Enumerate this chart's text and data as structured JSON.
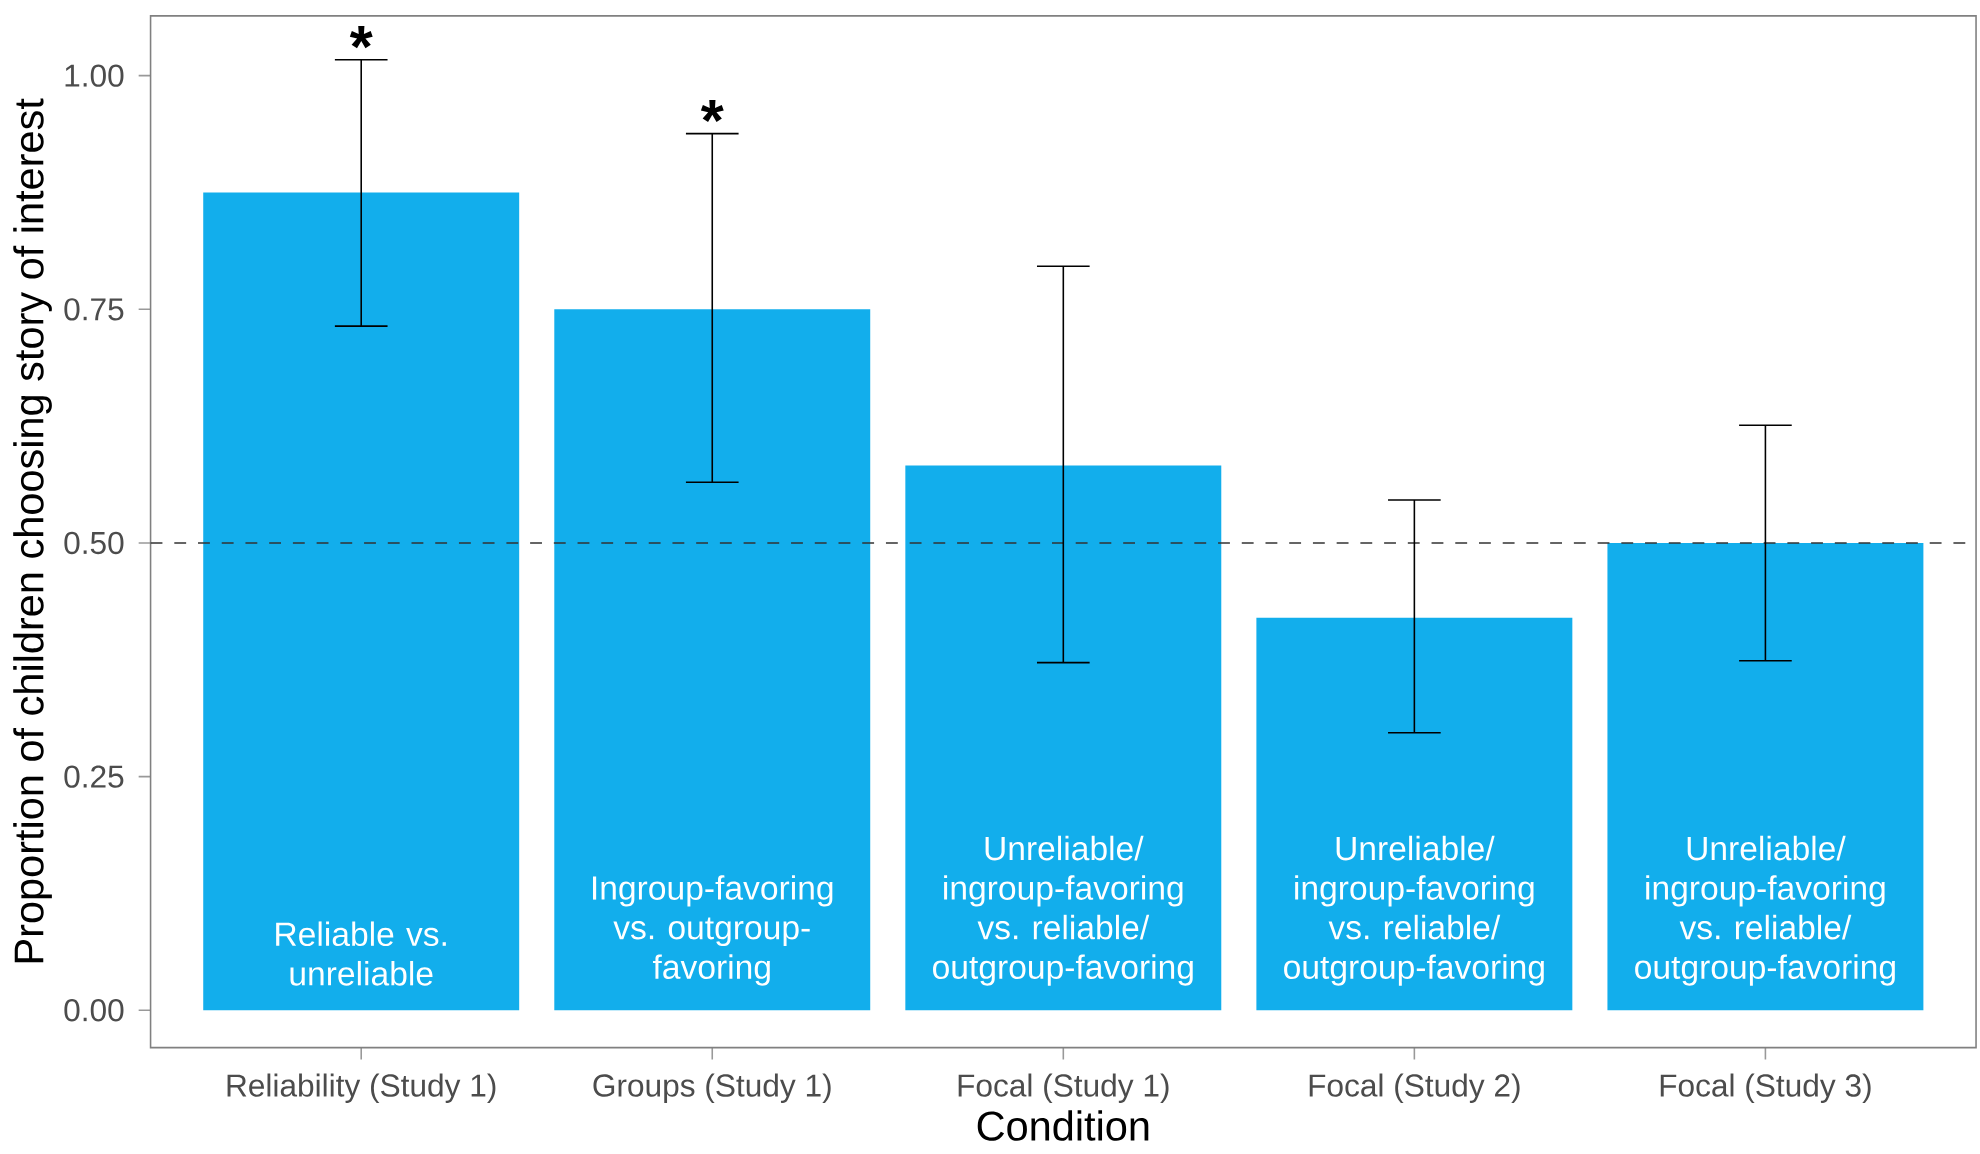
{
  "chart_data": {
    "type": "bar",
    "xlabel": "Condition",
    "ylabel": "Proportion of children choosing story of interest",
    "categories": [
      "Reliability (Study 1)",
      "Groups (Study 1)",
      "Focal (Study 1)",
      "Focal (Study 2)",
      "Focal (Study 3)"
    ],
    "values": [
      0.875,
      0.75,
      0.583,
      0.42,
      0.5
    ],
    "errors": [
      [
        0.732,
        1.017
      ],
      [
        0.565,
        0.938
      ],
      [
        0.372,
        0.796
      ],
      [
        0.297,
        0.546
      ],
      [
        0.374,
        0.626
      ]
    ],
    "color": "#12aeec",
    "ylim": [
      -0.04,
      1.064
    ],
    "yticks": [
      {
        "value": 0,
        "label": "0.00"
      },
      {
        "value": 0.25,
        "label": "0.25"
      },
      {
        "value": 0.5,
        "label": "0.50"
      },
      {
        "value": 0.75,
        "label": "0.75"
      },
      {
        "value": 1,
        "label": "1.00"
      }
    ],
    "ref_lines": [
      {
        "axis": "y",
        "value": 0.5,
        "line_style": "dashed"
      }
    ],
    "annotations": [
      {
        "text": "*",
        "x": "Reliability (Study 1)",
        "y": 1.017
      },
      {
        "text": "*",
        "x": "Groups (Study 1)",
        "y": 0.938
      },
      "Reliable vs. unreliable",
      "Ingroup-favoring vs. outgroup-favoring",
      "Unreliable/ ingroup-favoring vs. reliable/ outgroup-favoring",
      "Unreliable/ ingroup-favoring vs. reliable/ outgroup-favoring",
      "Unreliable/ ingroup-favoring vs. reliable/ outgroup-favoring"
    ]
  }
}
